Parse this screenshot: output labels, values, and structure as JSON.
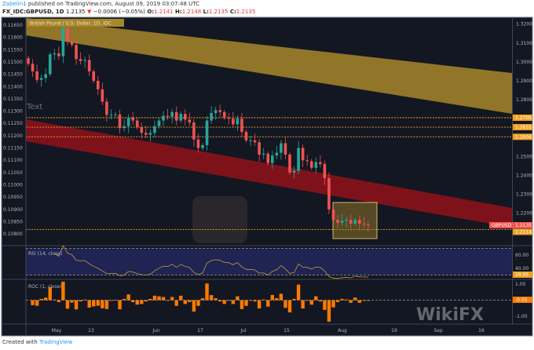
{
  "header": {
    "user": "Zabelin1",
    "published": " published on TradingView.com, August 09, 2019 03:07:48 UTC",
    "symbol": "FX_IDC:GBPUSD, 1D",
    "last": "1.2135",
    "change_arrow": "▼",
    "change": "−0.0006 (−0.05%)",
    "o_label": "O:",
    "o": "1.2141",
    "h_label": "H:",
    "h": "1.2148",
    "l_label": "L:",
    "l": "1.2135",
    "c_label": "C:",
    "c": "1.2135"
  },
  "footer": {
    "created_with": "Created with",
    "brand": "TradingView"
  },
  "watermark": "WikiFX",
  "colors": {
    "background": "#131722",
    "up": "#26a69a",
    "down": "#ef5350",
    "upper_channel": "#a8872a",
    "lower_channel": "#8b1219",
    "level_line": "#f0a020",
    "rsi": "#c79a3c",
    "roc": "#ff7a00",
    "rsi_band": "#1f2452"
  },
  "chart_data": [
    {
      "type": "candlestick",
      "title": "British Pound / U.S. Dollar, 1D, IDC",
      "annotation_text": "Text",
      "right_axis_ticks": [
        "1.3200",
        "1.3100",
        "1.3000",
        "1.2900",
        "1.2800",
        "1.2500",
        "1.2400",
        "1.2300",
        "1.2200"
      ],
      "left_axis_ticks": [
        "0.11650",
        "0.11600",
        "0.11550",
        "0.11500",
        "0.11450",
        "0.11400",
        "0.11350",
        "0.11300",
        "0.11250",
        "0.11200",
        "0.11150",
        "0.11100",
        "0.11050",
        "0.11000",
        "0.10950",
        "0.10900",
        "0.10850",
        "0.10800"
      ],
      "x_tick_labels": [
        "May",
        "13",
        "Jun",
        "17",
        "Jul",
        "15",
        "Aug",
        "19",
        "Sep",
        "16"
      ],
      "levels": [
        {
          "label": "1.2705",
          "value": 1.2705
        },
        {
          "label": "1.2655",
          "value": 1.2655
        },
        {
          "label": "1.2604",
          "value": 1.2604
        },
        {
          "label": "1.2114",
          "value": 1.2114
        }
      ],
      "last_price_tag": {
        "symbol": "GBPUSD",
        "value": "1.2135"
      },
      "dates": [
        "2019-04-23",
        "2019-04-24",
        "2019-04-25",
        "2019-04-26",
        "2019-04-29",
        "2019-04-30",
        "2019-05-01",
        "2019-05-02",
        "2019-05-03",
        "2019-05-06",
        "2019-05-07",
        "2019-05-08",
        "2019-05-09",
        "2019-05-10",
        "2019-05-13",
        "2019-05-14",
        "2019-05-15",
        "2019-05-16",
        "2019-05-17",
        "2019-05-20",
        "2019-05-21",
        "2019-05-22",
        "2019-05-23",
        "2019-05-24",
        "2019-05-27",
        "2019-05-28",
        "2019-05-29",
        "2019-05-30",
        "2019-05-31",
        "2019-06-03",
        "2019-06-04",
        "2019-06-05",
        "2019-06-06",
        "2019-06-07",
        "2019-06-10",
        "2019-06-11",
        "2019-06-12",
        "2019-06-13",
        "2019-06-14",
        "2019-06-17",
        "2019-06-18",
        "2019-06-19",
        "2019-06-20",
        "2019-06-21",
        "2019-06-24",
        "2019-06-25",
        "2019-06-26",
        "2019-06-27",
        "2019-06-28",
        "2019-07-01",
        "2019-07-02",
        "2019-07-03",
        "2019-07-04",
        "2019-07-05",
        "2019-07-08",
        "2019-07-09",
        "2019-07-10",
        "2019-07-11",
        "2019-07-12",
        "2019-07-15",
        "2019-07-16",
        "2019-07-17",
        "2019-07-18",
        "2019-07-19",
        "2019-07-22",
        "2019-07-23",
        "2019-07-24",
        "2019-07-25",
        "2019-07-26",
        "2019-07-29",
        "2019-07-30",
        "2019-07-31",
        "2019-08-01",
        "2019-08-02",
        "2019-08-05",
        "2019-08-06",
        "2019-08-07",
        "2019-08-08",
        "2019-08-09"
      ],
      "close": [
        1.299,
        1.295,
        1.2905,
        1.2915,
        1.2935,
        1.304,
        1.3045,
        1.303,
        1.318,
        1.311,
        1.309,
        1.3015,
        1.3005,
        1.301,
        1.295,
        1.29,
        1.2855,
        1.279,
        1.272,
        1.272,
        1.2722,
        1.265,
        1.266,
        1.2705,
        1.269,
        1.2655,
        1.2625,
        1.2615,
        1.2625,
        1.266,
        1.269,
        1.2715,
        1.271,
        1.2735,
        1.269,
        1.2725,
        1.2695,
        1.268,
        1.259,
        1.2545,
        1.256,
        1.269,
        1.273,
        1.2745,
        1.2735,
        1.2705,
        1.27,
        1.267,
        1.27,
        1.263,
        1.2585,
        1.2585,
        1.2575,
        1.251,
        1.2515,
        1.2465,
        1.2505,
        1.252,
        1.257,
        1.251,
        1.2415,
        1.2425,
        1.2545,
        1.248,
        1.2475,
        1.244,
        1.247,
        1.246,
        1.2385,
        1.222,
        1.2165,
        1.215,
        1.216,
        1.2165,
        1.2145,
        1.2165,
        1.2145,
        1.214,
        1.2135
      ]
    },
    {
      "type": "line",
      "title": "RSI (14, close)",
      "y_ticks": [
        "60.00",
        "40.00"
      ],
      "bands": [
        70,
        30
      ],
      "last_value_label": "29.95"
    },
    {
      "type": "bar",
      "title": "ROC (1, close)",
      "y_ticks": [
        "1.00",
        "-1.00"
      ],
      "last_value_label": "-0.05"
    }
  ]
}
